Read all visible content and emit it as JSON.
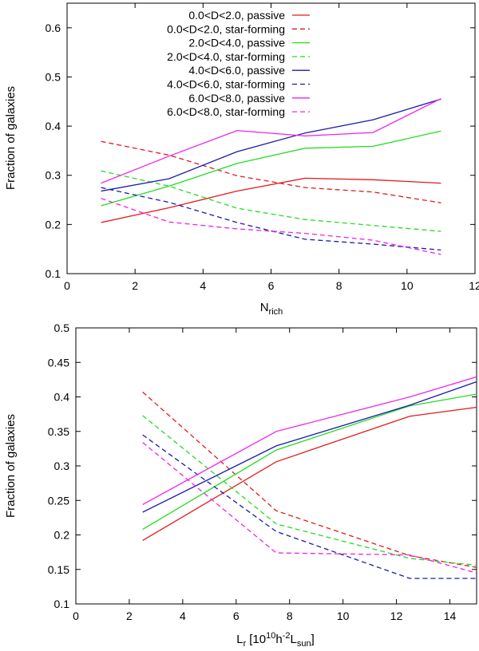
{
  "chart_data": [
    {
      "type": "line",
      "xlabel": "N",
      "xlabel_sub": "rich",
      "ylabel": "Fraction of galaxies",
      "xlim": [
        0,
        12
      ],
      "ylim": [
        0.1,
        0.65
      ],
      "xticks": [
        "0",
        "2",
        "4",
        "6",
        "8",
        "10",
        "12"
      ],
      "yticks": [
        "0.1",
        "0.2",
        "0.3",
        "0.4",
        "0.5",
        "0.6"
      ],
      "grid": false,
      "legend_position": "top-left",
      "x": [
        1,
        3,
        5,
        7,
        9,
        11
      ],
      "series": [
        {
          "name": "0.0<D<2.0, passive",
          "color": "#e41a1c",
          "dash": "solid",
          "values": [
            0.204,
            0.234,
            0.268,
            0.294,
            0.291,
            0.284
          ]
        },
        {
          "name": "0.0<D<2.0, star-forming",
          "color": "#e41a1c",
          "dash": "dashed",
          "values": [
            0.369,
            0.341,
            0.299,
            0.275,
            0.266,
            0.244
          ]
        },
        {
          "name": "2.0<D<4.0, passive",
          "color": "#22dd22",
          "dash": "solid",
          "values": [
            0.238,
            0.278,
            0.324,
            0.355,
            0.359,
            0.39
          ]
        },
        {
          "name": "2.0<D<4.0, star-forming",
          "color": "#22dd22",
          "dash": "dashed",
          "values": [
            0.309,
            0.278,
            0.233,
            0.21,
            0.198,
            0.186
          ]
        },
        {
          "name": "4.0<D<6.0, passive",
          "color": "#1a1aaa",
          "dash": "solid",
          "values": [
            0.268,
            0.293,
            0.348,
            0.386,
            0.413,
            0.455
          ]
        },
        {
          "name": "4.0<D<6.0, star-forming",
          "color": "#1a1aaa",
          "dash": "dashed",
          "values": [
            0.275,
            0.245,
            0.204,
            0.17,
            0.16,
            0.148
          ]
        },
        {
          "name": "6.0<D<8.0, passive",
          "color": "#ee22ee",
          "dash": "solid",
          "values": [
            0.284,
            0.339,
            0.391,
            0.38,
            0.387,
            0.456
          ]
        },
        {
          "name": "6.0<D<8.0, star-forming",
          "color": "#ee22ee",
          "dash": "dashed",
          "values": [
            0.253,
            0.205,
            0.191,
            0.182,
            0.168,
            0.139
          ]
        }
      ]
    },
    {
      "type": "line",
      "xlabel": "L",
      "xlabel_sub": "r",
      "xlabel_rest": "[10",
      "xlabel_sup1": "10",
      "xlabel_mid": "h",
      "xlabel_sup2": "-2",
      "xlabel_end": "L",
      "xlabel_sub2": "sun",
      "xlabel_close": "]",
      "ylabel": "Fraction of galaxies",
      "xlim": [
        0,
        15
      ],
      "ylim": [
        0.1,
        0.5
      ],
      "xticks": [
        "0",
        "2",
        "4",
        "6",
        "8",
        "10",
        "12",
        "14"
      ],
      "yticks": [
        "0.1",
        "0.15",
        "0.2",
        "0.25",
        "0.3",
        "0.35",
        "0.4",
        "0.45",
        "0.5"
      ],
      "grid": false,
      "x": [
        2.5,
        7.5,
        12.5,
        15
      ],
      "series": [
        {
          "color": "#e41a1c",
          "dash": "solid",
          "values": [
            0.192,
            0.306,
            0.372,
            0.385
          ]
        },
        {
          "color": "#e41a1c",
          "dash": "dashed",
          "values": [
            0.407,
            0.235,
            0.17,
            0.153
          ]
        },
        {
          "color": "#22dd22",
          "dash": "solid",
          "values": [
            0.208,
            0.323,
            0.387,
            0.404
          ]
        },
        {
          "color": "#22dd22",
          "dash": "dashed",
          "values": [
            0.373,
            0.216,
            0.166,
            0.156
          ]
        },
        {
          "color": "#1a1aaa",
          "dash": "solid",
          "values": [
            0.233,
            0.329,
            0.388,
            0.422
          ]
        },
        {
          "color": "#1a1aaa",
          "dash": "dashed",
          "values": [
            0.345,
            0.205,
            0.137,
            0.137
          ]
        },
        {
          "color": "#ee22ee",
          "dash": "solid",
          "values": [
            0.244,
            0.35,
            0.4,
            0.429
          ]
        },
        {
          "color": "#ee22ee",
          "dash": "dashed",
          "values": [
            0.334,
            0.174,
            0.171,
            0.145
          ]
        }
      ]
    }
  ]
}
